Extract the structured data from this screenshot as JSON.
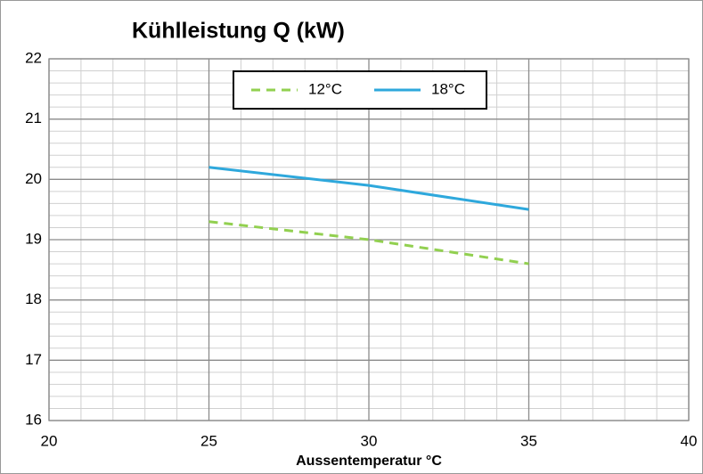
{
  "chart_data": {
    "type": "line",
    "title": "Kühlleistung Q (kW)",
    "xlabel": "Aussentemperatur °C",
    "x": [
      25,
      30,
      35
    ],
    "series": [
      {
        "name": "12°C",
        "color": "#92d050",
        "style": "dashed",
        "values": [
          19.3,
          19.0,
          18.6
        ]
      },
      {
        "name": "18°C",
        "color": "#2ea8dc",
        "style": "solid",
        "values": [
          20.2,
          19.9,
          19.5
        ]
      }
    ],
    "xlim": [
      20,
      40
    ],
    "xticks": [
      20,
      25,
      30,
      35,
      40
    ],
    "ylim": [
      16,
      22
    ],
    "yticks": [
      16,
      17,
      18,
      19,
      20,
      21,
      22
    ],
    "grid": true,
    "legend": "top"
  }
}
